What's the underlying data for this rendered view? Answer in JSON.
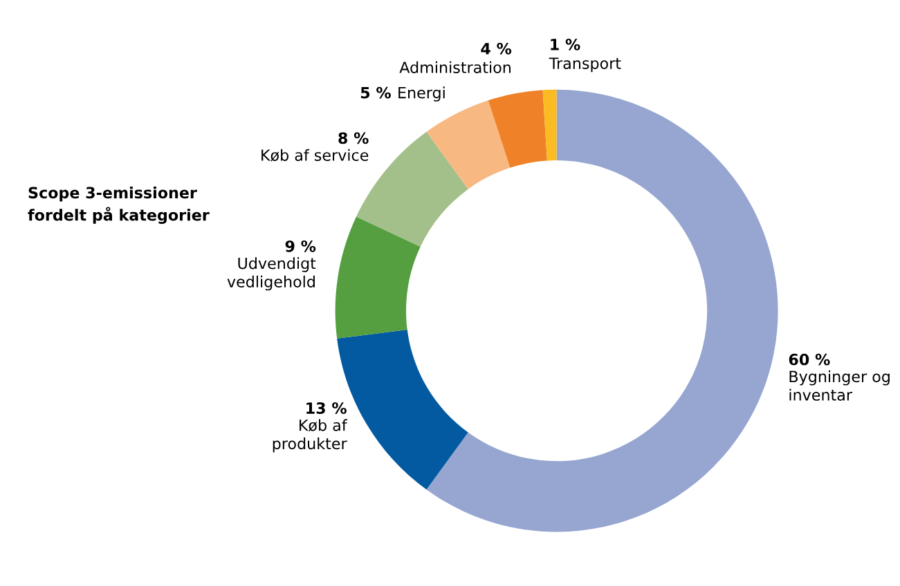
{
  "chart_data": {
    "type": "donut",
    "title": "Scope 3-emissioner\nfordelt på kategorier",
    "categories": [
      "Bygninger og\ninventar",
      "Køb af\nprodukter",
      "Udvendigt\nvedligehold",
      "Køb af service",
      "Energi",
      "Administration",
      "Transport"
    ],
    "values": [
      60,
      13,
      9,
      8,
      5,
      4,
      1
    ],
    "value_labels": [
      "60 %",
      "13 %",
      "9 %",
      "8 %",
      "5 %",
      "4 %",
      "1 %"
    ],
    "colors": [
      "#96a6d0",
      "#035aa0",
      "#559f41",
      "#a3c08a",
      "#f7b882",
      "#ef8228",
      "#fbbb22"
    ],
    "legend": false
  }
}
